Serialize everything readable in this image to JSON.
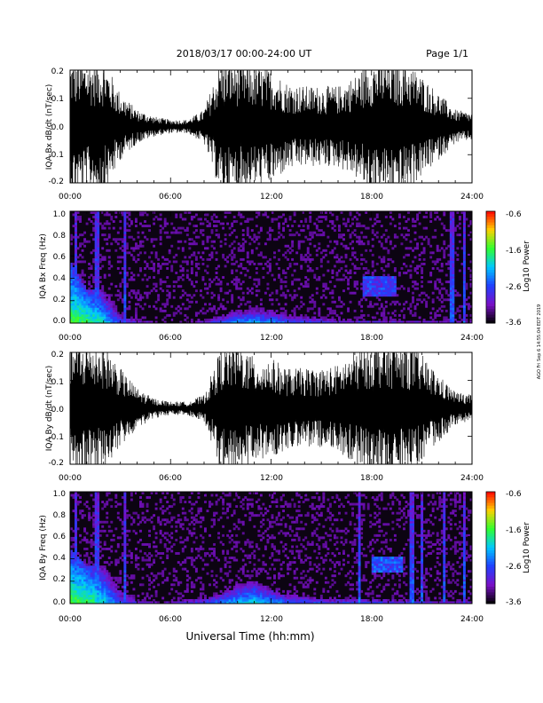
{
  "header": {
    "title": "2018/03/17  00:00-24:00 UT",
    "page": "Page 1/1"
  },
  "x_axis": {
    "title": "Universal Time (hh:mm)",
    "tick_labels": [
      "00:00",
      "06:00",
      "12:00",
      "18:00",
      "24:00"
    ]
  },
  "side_note": "AGO Fri Sep 6 14:55:04 EDT 2019",
  "colorbar": {
    "label": "Log10 Power",
    "tick_labels": [
      "-0.6",
      "-1.6",
      "-2.6",
      "-3.6"
    ],
    "colors": [
      "#ff0000",
      "#ffd000",
      "#30ff30",
      "#00c8ff",
      "#2040ff",
      "#7a10c8",
      "#000000"
    ]
  },
  "chart_data": [
    {
      "type": "line",
      "panel": "Bx dB/dt",
      "ylabel": "IQA Bx dB/dt (nT/sec)",
      "xlim": [
        0,
        24
      ],
      "ylim": [
        -0.2,
        0.2
      ],
      "y_ticks": [
        "0.2",
        "0.1",
        "0.0",
        "-0.1",
        "-0.2"
      ],
      "x_hours": [
        0,
        1,
        2,
        3,
        4,
        5,
        6,
        7,
        8,
        9,
        10,
        11,
        12,
        13,
        14,
        15,
        16,
        17,
        18,
        19,
        20,
        21,
        22,
        23,
        24
      ],
      "amplitude": [
        0.2,
        0.2,
        0.2,
        0.1,
        0.05,
        0.03,
        0.02,
        0.02,
        0.05,
        0.2,
        0.2,
        0.18,
        0.17,
        0.13,
        0.12,
        0.12,
        0.12,
        0.15,
        0.2,
        0.2,
        0.2,
        0.15,
        0.1,
        0.05,
        0.04
      ]
    },
    {
      "type": "heatmap",
      "panel": "Bx spectrogram",
      "ylabel": "IQA Bx Freq (Hz)",
      "xlim": [
        0,
        24
      ],
      "ylim": [
        0.0,
        1.0
      ],
      "y_ticks": [
        "1.0",
        "0.8",
        "0.6",
        "0.4",
        "0.2",
        "0.0"
      ],
      "zlim": [
        -3.6,
        -0.6
      ],
      "x_hours": [
        0,
        1,
        2,
        3,
        4,
        5,
        6,
        7,
        8,
        9,
        10,
        11,
        12,
        13,
        14,
        15,
        16,
        17,
        18,
        19,
        20,
        21,
        22,
        23,
        24
      ],
      "band_top_hz": [
        0.55,
        0.3,
        0.3,
        0.15,
        0.08,
        0.04,
        0.03,
        0.03,
        0.05,
        0.08,
        0.12,
        0.14,
        0.14,
        0.12,
        0.1,
        0.08,
        0.06,
        0.06,
        0.05,
        0.05,
        0.05,
        0.04,
        0.04,
        0.03,
        0.03
      ],
      "band_peak": [
        -1.6,
        -1.6,
        -2.0,
        -2.6,
        -2.8,
        -3.0,
        -3.0,
        -3.0,
        -2.7,
        -2.4,
        -2.2,
        -2.2,
        -2.3,
        -2.5,
        -2.6,
        -2.6,
        -2.7,
        -2.7,
        -2.7,
        -2.7,
        -2.8,
        -2.8,
        -2.8,
        -2.8,
        -2.8
      ],
      "pc_band": {
        "x_range": [
          17.5,
          19.5
        ],
        "freq_range": [
          0.25,
          0.42
        ],
        "level": -2.4
      },
      "spikes_hours": [
        0.3,
        1.6,
        3.3,
        22.8,
        23.5
      ]
    },
    {
      "type": "line",
      "panel": "By dB/dt",
      "ylabel": "IQA By dB/dt (nT/sec)",
      "xlim": [
        0,
        24
      ],
      "ylim": [
        -0.2,
        0.2
      ],
      "y_ticks": [
        "0.2",
        "0.1",
        "0.0",
        "-0.1",
        "-0.2"
      ],
      "x_hours": [
        0,
        1,
        2,
        3,
        4,
        5,
        6,
        7,
        8,
        9,
        10,
        11,
        12,
        13,
        14,
        15,
        16,
        17,
        18,
        19,
        20,
        21,
        22,
        23,
        24
      ],
      "amplitude": [
        0.2,
        0.2,
        0.2,
        0.12,
        0.06,
        0.03,
        0.02,
        0.02,
        0.04,
        0.18,
        0.2,
        0.15,
        0.15,
        0.12,
        0.12,
        0.12,
        0.13,
        0.17,
        0.2,
        0.2,
        0.2,
        0.16,
        0.1,
        0.05,
        0.04
      ]
    },
    {
      "type": "heatmap",
      "panel": "By spectrogram",
      "ylabel": "IQA By Freq (Hz)",
      "xlim": [
        0,
        24
      ],
      "ylim": [
        0.0,
        1.0
      ],
      "y_ticks": [
        "1.0",
        "0.8",
        "0.6",
        "0.4",
        "0.2",
        "0.0"
      ],
      "zlim": [
        -3.6,
        -0.6
      ],
      "x_hours": [
        0,
        1,
        2,
        3,
        4,
        5,
        6,
        7,
        8,
        9,
        10,
        11,
        12,
        13,
        14,
        15,
        16,
        17,
        18,
        19,
        20,
        21,
        22,
        23,
        24
      ],
      "band_top_hz": [
        0.5,
        0.35,
        0.35,
        0.18,
        0.08,
        0.05,
        0.05,
        0.08,
        0.1,
        0.12,
        0.18,
        0.2,
        0.16,
        0.12,
        0.1,
        0.08,
        0.08,
        0.08,
        0.07,
        0.07,
        0.06,
        0.05,
        0.05,
        0.04,
        0.04
      ],
      "band_peak": [
        -1.6,
        -1.6,
        -2.0,
        -2.5,
        -2.8,
        -2.9,
        -2.9,
        -2.8,
        -2.6,
        -2.3,
        -2.1,
        -2.0,
        -2.2,
        -2.4,
        -2.5,
        -2.5,
        -2.6,
        -2.6,
        -2.6,
        -2.6,
        -2.7,
        -2.7,
        -2.7,
        -2.7,
        -2.7
      ],
      "pc_band": {
        "x_range": [
          18.0,
          19.8
        ],
        "freq_range": [
          0.28,
          0.42
        ],
        "level": -2.3
      },
      "spikes_hours": [
        0.3,
        1.6,
        3.3,
        17.3,
        20.4,
        21.0,
        22.3,
        23.5
      ]
    }
  ]
}
